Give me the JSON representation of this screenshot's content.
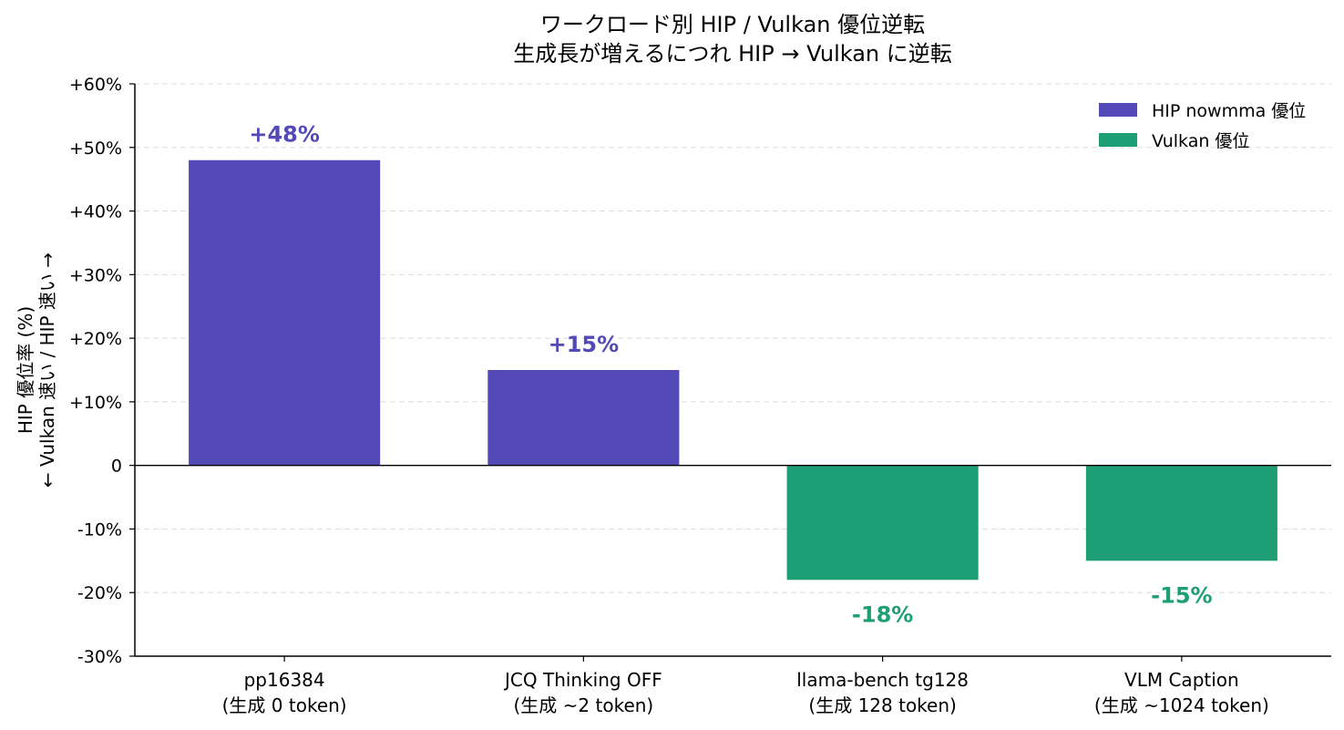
{
  "chart_data": {
    "type": "bar",
    "title": [
      "ワークロード別 HIP / Vulkan 優位逆転",
      "生成長が増えるにつれ HIP → Vulkan に逆転"
    ],
    "ylabel": [
      "HIP 優位率 (%)",
      "← Vulkan 速い / HIP 速い →"
    ],
    "categories": [
      [
        "pp16384",
        "(生成 0 token)"
      ],
      [
        "JCQ Thinking OFF",
        "(生成 ~2 token)"
      ],
      [
        "llama-bench tg128",
        "(生成 128 token)"
      ],
      [
        "VLM Caption",
        "(生成 ~1024 token)"
      ]
    ],
    "values": [
      48,
      15,
      -18,
      -15
    ],
    "data_labels": [
      "+48%",
      "+15%",
      "-18%",
      "-15%"
    ],
    "ylim": [
      -30,
      60
    ],
    "yticks": [
      60,
      50,
      40,
      30,
      20,
      10,
      0,
      -10,
      -20,
      -30
    ],
    "ytick_labels": [
      "+60%",
      "+50%",
      "+40%",
      "+30%",
      "+20%",
      "+10%",
      "0",
      "-10%",
      "-20%",
      "-30%"
    ],
    "grid": true,
    "legend": {
      "placement": "top-right",
      "entries": [
        {
          "label": "HIP nowmma 優位",
          "color": "#534ab7"
        },
        {
          "label": "Vulkan 優位",
          "color": "#1d9e75"
        }
      ]
    },
    "colors": {
      "positive": "#534ab7",
      "negative": "#1d9e75"
    }
  }
}
